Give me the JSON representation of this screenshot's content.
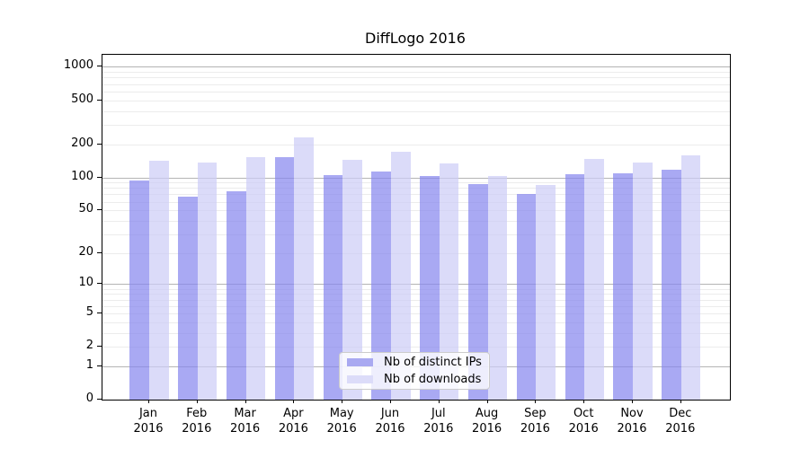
{
  "title": "DiffLogo 2016",
  "year_label": "2016",
  "legend": {
    "items": [
      {
        "label": "Nb of distinct IPs"
      },
      {
        "label": "Nb of downloads"
      }
    ]
  },
  "colors": {
    "distinct_ips_bar": "rgba(133,133,238,0.7)",
    "downloads_bar": "rgba(204,204,247,0.7)",
    "distinct_ips_solid": "#a9a9f1",
    "downloads_solid": "#dcdcf9",
    "major_grid": "#b4b4b4",
    "minor_grid": "#ececec",
    "axis": "#000000"
  },
  "axes": {
    "y_tick_values": [
      0,
      1,
      2,
      5,
      10,
      20,
      50,
      100,
      200,
      500,
      1000
    ],
    "y_tick_labels": [
      "0",
      "1",
      "2",
      "5",
      "10",
      "20",
      "50",
      "100",
      "200",
      "500",
      "1000"
    ],
    "x_months": [
      "Jan",
      "Feb",
      "Mar",
      "Apr",
      "May",
      "Jun",
      "Jul",
      "Aug",
      "Sep",
      "Oct",
      "Nov",
      "Dec"
    ]
  },
  "chart_data": {
    "type": "bar",
    "title": "DiffLogo 2016",
    "categories": [
      "Jan 2016",
      "Feb 2016",
      "Mar 2016",
      "Apr 2016",
      "May 2016",
      "Jun 2016",
      "Jul 2016",
      "Aug 2016",
      "Sep 2016",
      "Oct 2016",
      "Nov 2016",
      "Dec 2016"
    ],
    "series": [
      {
        "name": "Nb of distinct IPs",
        "values": [
          94,
          67,
          75,
          153,
          104,
          113,
          103,
          87,
          70,
          107,
          109,
          118
        ]
      },
      {
        "name": "Nb of downloads",
        "values": [
          141,
          136,
          153,
          229,
          145,
          170,
          134,
          102,
          85,
          147,
          137,
          160
        ]
      }
    ],
    "yscale": "log10(value+1)",
    "yticks": [
      0,
      1,
      2,
      5,
      10,
      20,
      50,
      100,
      200,
      500,
      1000
    ],
    "ylim": [
      0,
      1285
    ],
    "xlabel": "",
    "ylabel": "",
    "grid": true,
    "legend_position": "lower center"
  }
}
